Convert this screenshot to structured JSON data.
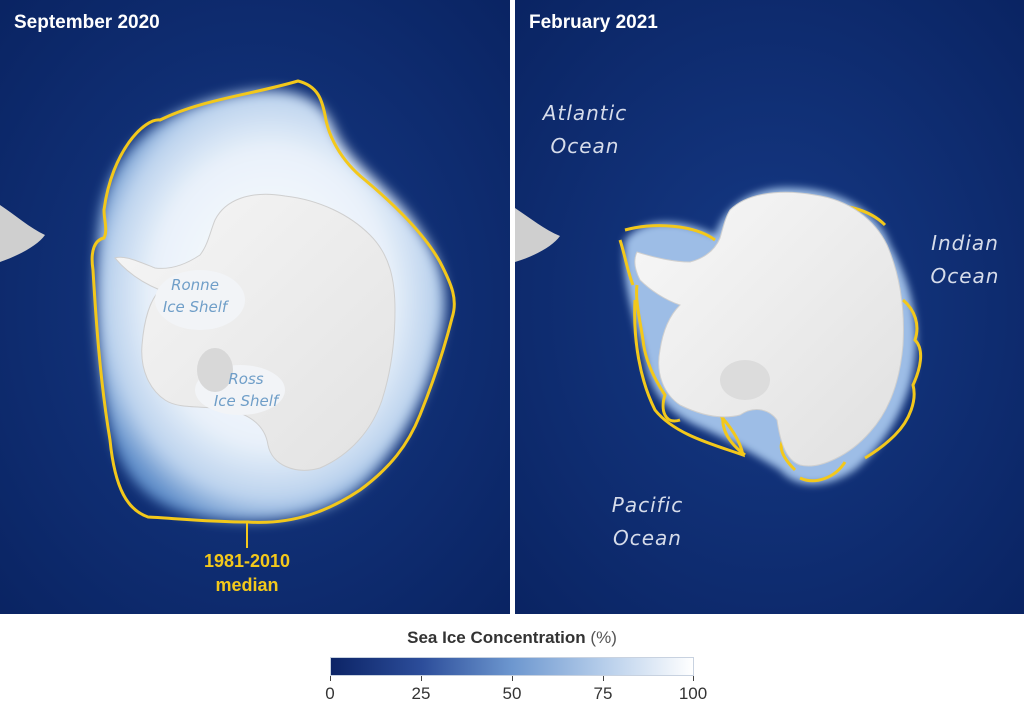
{
  "panels": {
    "left": {
      "title": "September 2020"
    },
    "right": {
      "title": "February 2021"
    }
  },
  "annotations": {
    "median": [
      "1981-2010",
      "median"
    ],
    "ronne": [
      "Ronne",
      "Ice Shelf"
    ],
    "ross": [
      "Ross",
      "Ice Shelf"
    ],
    "atlantic": [
      "Atlantic",
      "Ocean"
    ],
    "indian": [
      "Indian",
      "Ocean"
    ],
    "pacific": [
      "Pacific",
      "Ocean"
    ]
  },
  "legend": {
    "title": "Sea Ice Concentration",
    "unit": "(%)",
    "ticks": [
      "0",
      "25",
      "50",
      "75",
      "100"
    ],
    "range": [
      0,
      100
    ]
  },
  "colors": {
    "ocean": "#0c2a6e",
    "median_line": "#f3c81b",
    "ice_high": "#ffffff",
    "ice_low": "#4f7fc0",
    "land": "#efefef"
  }
}
